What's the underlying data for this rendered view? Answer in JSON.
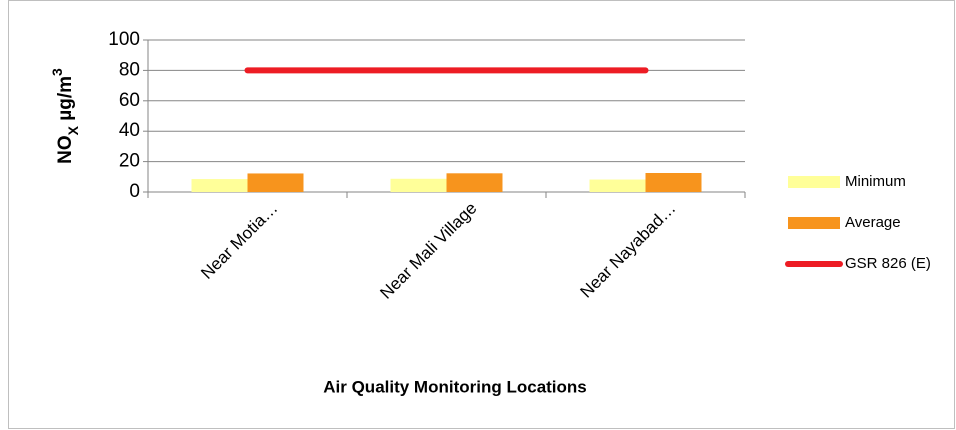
{
  "chart_data": {
    "type": "bar",
    "y_label": [
      "NO",
      "X",
      " µg/m",
      "3"
    ],
    "x_label": "Air Quality Monitoring Locations",
    "categories": [
      "Near Motia…",
      "Near Mali Village",
      "Near Nayabad…"
    ],
    "series": [
      {
        "name": "Minimum",
        "type": "bar",
        "color": "#ffff99",
        "values": [
          8.5,
          8.7,
          8.2
        ]
      },
      {
        "name": "Average",
        "type": "bar",
        "color": "#f7941d",
        "values": [
          12.2,
          12.3,
          12.5
        ]
      },
      {
        "name": "GSR 826 (E)",
        "type": "line",
        "color": "#ed1c24",
        "values": [
          80,
          80,
          80
        ]
      }
    ],
    "ylim": [
      0,
      100
    ],
    "yticks": [
      0,
      20,
      40,
      60,
      80,
      100
    ],
    "grid": true,
    "legend": "right"
  }
}
